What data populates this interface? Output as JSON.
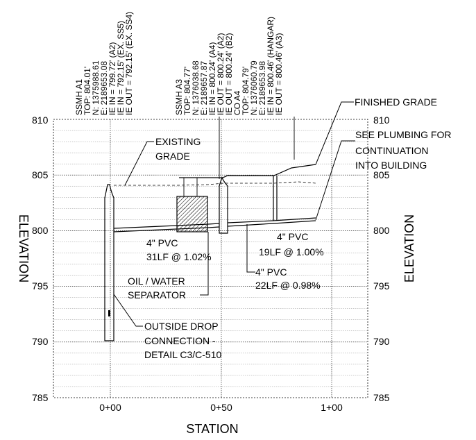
{
  "axes": {
    "x_title": "STATION",
    "y_title_left": "ELEVATION",
    "y_title_right": "ELEVATION",
    "x_ticks": [
      "0+00",
      "0+50",
      "1+00"
    ],
    "y_ticks": [
      "810",
      "805",
      "800",
      "795",
      "790",
      "785"
    ]
  },
  "structures": {
    "ssmh_a1": {
      "lines": [
        "SSMH A1",
        "TOP: 804.01'",
        "N: 1375988.61",
        "E: 2189653.08",
        "IE IN = 799.72' (A2)",
        "IE IN = 792.15' (EX. SS5)",
        "IE OUT = 792.15' (EX. SS4)"
      ]
    },
    "ssmh_a3_co_a4": {
      "lines": [
        "SSMH A3",
        "TOP: 804.77'",
        "N: 1376038.68",
        "E: 2189657.87",
        "IE IN = 800.24' (A4)",
        "IE OUT = 800.24' (A2)",
        "IE OUT = 800.24' (B2)",
        "CO A4",
        "TOP: 804.79'",
        "N: 1376060.79",
        "E: 2189653.98",
        "IE IN = 800.46' (HANGAR)",
        "IE OUT = 800.46' (A3)"
      ]
    }
  },
  "callouts": {
    "finished_grade": "FINISHED GRADE",
    "existing_grade": [
      "EXISTING",
      "GRADE"
    ],
    "see_plumbing": [
      "SEE PLUMBING FOR",
      "CONTINUATION",
      "INTO BUILDING"
    ],
    "pipe_1": [
      "4\" PVC",
      "31LF @ 1.02%"
    ],
    "pipe_2": [
      "4\" PVC",
      "19LF @ 1.00%"
    ],
    "pipe_3": [
      "4\" PVC",
      "22LF @ 0.98%"
    ],
    "separator": [
      "OIL / WATER",
      "SEPARATOR"
    ],
    "drop": [
      "OUTSIDE DROP",
      "CONNECTION -",
      "DETAIL C3/C-510"
    ]
  }
}
